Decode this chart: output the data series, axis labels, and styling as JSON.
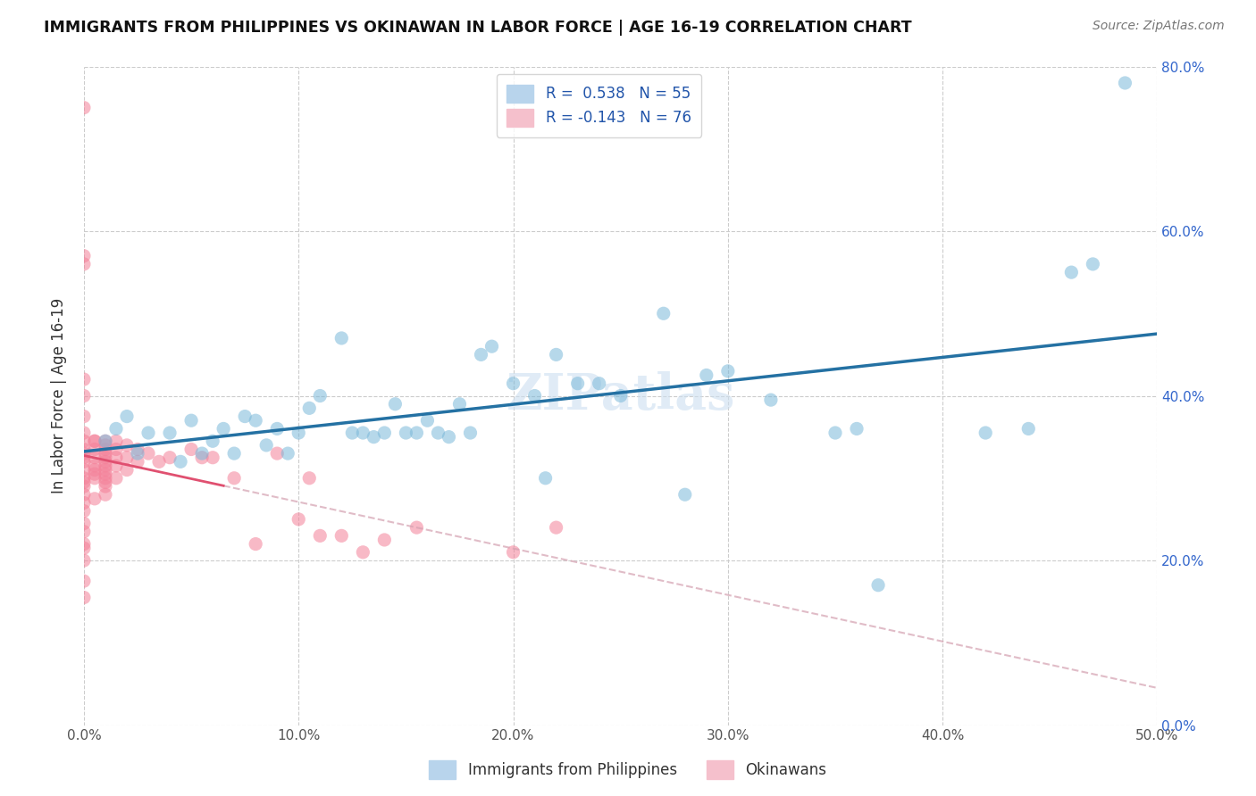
{
  "title": "IMMIGRANTS FROM PHILIPPINES VS OKINAWAN IN LABOR FORCE | AGE 16-19 CORRELATION CHART",
  "source": "Source: ZipAtlas.com",
  "ylabel": "In Labor Force | Age 16-19",
  "xlim": [
    0.0,
    0.5
  ],
  "ylim": [
    0.0,
    0.8
  ],
  "xticks": [
    0.0,
    0.1,
    0.2,
    0.3,
    0.4,
    0.5
  ],
  "yticks": [
    0.0,
    0.2,
    0.4,
    0.6,
    0.8
  ],
  "xticklabels": [
    "0.0%",
    "10.0%",
    "20.0%",
    "30.0%",
    "40.0%",
    "50.0%"
  ],
  "yticklabels_right": [
    "0.0%",
    "20.0%",
    "40.0%",
    "60.0%",
    "80.0%"
  ],
  "watermark": "ZIPatlas",
  "blue_color": "#7ab8d9",
  "pink_color": "#f48098",
  "blue_line_color": "#2471a3",
  "pink_line_color": "#e05070",
  "blue_points_x": [
    0.01,
    0.015,
    0.02,
    0.025,
    0.03,
    0.04,
    0.045,
    0.05,
    0.055,
    0.06,
    0.065,
    0.07,
    0.075,
    0.08,
    0.085,
    0.09,
    0.095,
    0.1,
    0.105,
    0.11,
    0.12,
    0.125,
    0.13,
    0.135,
    0.14,
    0.145,
    0.15,
    0.155,
    0.16,
    0.165,
    0.17,
    0.175,
    0.18,
    0.185,
    0.19,
    0.2,
    0.21,
    0.215,
    0.22,
    0.23,
    0.24,
    0.25,
    0.27,
    0.28,
    0.29,
    0.3,
    0.32,
    0.35,
    0.36,
    0.37,
    0.42,
    0.44,
    0.46,
    0.47,
    0.485
  ],
  "blue_points_y": [
    0.345,
    0.36,
    0.375,
    0.33,
    0.355,
    0.355,
    0.32,
    0.37,
    0.33,
    0.345,
    0.36,
    0.33,
    0.375,
    0.37,
    0.34,
    0.36,
    0.33,
    0.355,
    0.385,
    0.4,
    0.47,
    0.355,
    0.355,
    0.35,
    0.355,
    0.39,
    0.355,
    0.355,
    0.37,
    0.355,
    0.35,
    0.39,
    0.355,
    0.45,
    0.46,
    0.415,
    0.4,
    0.3,
    0.45,
    0.415,
    0.415,
    0.4,
    0.5,
    0.28,
    0.425,
    0.43,
    0.395,
    0.355,
    0.36,
    0.17,
    0.355,
    0.36,
    0.55,
    0.56,
    0.78
  ],
  "pink_points_x": [
    0.0,
    0.0,
    0.0,
    0.0,
    0.0,
    0.0,
    0.0,
    0.0,
    0.0,
    0.0,
    0.0,
    0.0,
    0.0,
    0.0,
    0.0,
    0.0,
    0.0,
    0.0,
    0.0,
    0.0,
    0.0,
    0.0,
    0.0,
    0.0,
    0.0,
    0.0,
    0.005,
    0.005,
    0.005,
    0.005,
    0.005,
    0.005,
    0.005,
    0.005,
    0.005,
    0.01,
    0.01,
    0.01,
    0.01,
    0.01,
    0.01,
    0.01,
    0.01,
    0.01,
    0.01,
    0.01,
    0.01,
    0.01,
    0.015,
    0.015,
    0.015,
    0.015,
    0.015,
    0.02,
    0.02,
    0.02,
    0.025,
    0.025,
    0.03,
    0.035,
    0.04,
    0.05,
    0.055,
    0.06,
    0.07,
    0.08,
    0.09,
    0.1,
    0.105,
    0.11,
    0.12,
    0.13,
    0.14,
    0.155,
    0.2,
    0.22
  ],
  "pink_points_y": [
    0.75,
    0.57,
    0.56,
    0.42,
    0.4,
    0.375,
    0.355,
    0.345,
    0.335,
    0.33,
    0.325,
    0.32,
    0.31,
    0.3,
    0.295,
    0.29,
    0.28,
    0.27,
    0.26,
    0.245,
    0.235,
    0.22,
    0.215,
    0.2,
    0.175,
    0.155,
    0.345,
    0.345,
    0.335,
    0.325,
    0.315,
    0.31,
    0.305,
    0.3,
    0.275,
    0.345,
    0.34,
    0.335,
    0.33,
    0.325,
    0.32,
    0.315,
    0.31,
    0.305,
    0.3,
    0.295,
    0.29,
    0.28,
    0.345,
    0.335,
    0.325,
    0.315,
    0.3,
    0.34,
    0.325,
    0.31,
    0.335,
    0.32,
    0.33,
    0.32,
    0.325,
    0.335,
    0.325,
    0.325,
    0.3,
    0.22,
    0.33,
    0.25,
    0.3,
    0.23,
    0.23,
    0.21,
    0.225,
    0.24,
    0.21,
    0.24
  ]
}
